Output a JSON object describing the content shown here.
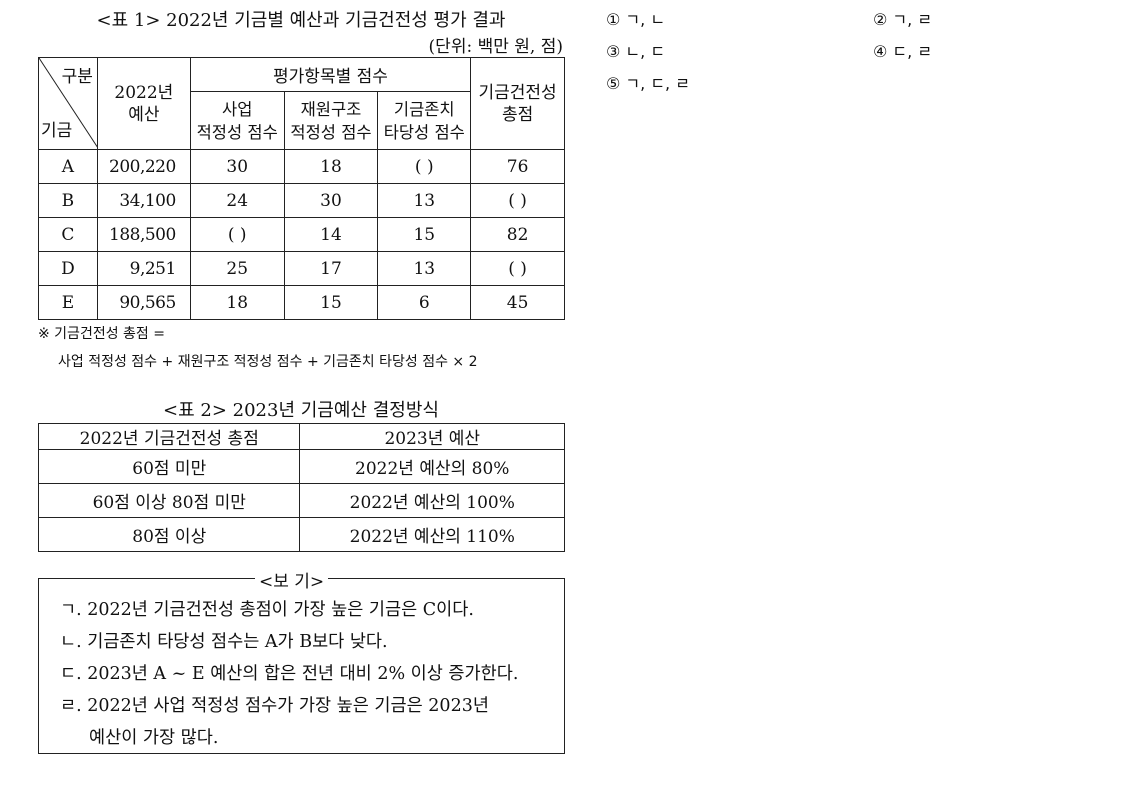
{
  "table1": {
    "title": "<표 1> 2022년 기금별 예산과 기금건전성 평가 결과",
    "unit": "(단위: 백만 원, 점)",
    "diag_top": "구분",
    "diag_bottom": "기금",
    "col_budget": "2022년\n예산",
    "col_group": "평가항목별 점수",
    "col_sub1": "사업\n적정성 점수",
    "col_sub2": "재원구조\n적정성 점수",
    "col_sub3": "기금존치\n타당성 점수",
    "col_total": "기금건전성\n총점",
    "rows": [
      {
        "fund": "A",
        "budget": "200,220",
        "s1": "30",
        "s2": "18",
        "s3": "(     )",
        "total": "76"
      },
      {
        "fund": "B",
        "budget": "34,100",
        "s1": "24",
        "s2": "30",
        "s3": "13",
        "total": "(     )"
      },
      {
        "fund": "C",
        "budget": "188,500",
        "s1": "(     )",
        "s2": "14",
        "s3": "15",
        "total": "82"
      },
      {
        "fund": "D",
        "budget": "9,251",
        "s1": "25",
        "s2": "17",
        "s3": "13",
        "total": "(     )"
      },
      {
        "fund": "E",
        "budget": "90,565",
        "s1": "18",
        "s2": "15",
        "s3": "6",
        "total": "45"
      }
    ],
    "note1": "※ 기금건전성 총점 =",
    "note2": "사업 적정성 점수 + 재원구조 적정성 점수 + 기금존치 타당성 점수 × 2"
  },
  "table2": {
    "title": "<표 2> 2023년 기금예산 결정방식",
    "head1": "2022년 기금건전성 총점",
    "head2": "2023년 예산",
    "rows": [
      {
        "score": "60점 미만",
        "budget": "2022년 예산의 80%"
      },
      {
        "score": "60점 이상 80점 미만",
        "budget": "2022년 예산의 100%"
      },
      {
        "score": "80점 이상",
        "budget": "2022년 예산의 110%"
      }
    ]
  },
  "bogi": {
    "title": "<보 기>",
    "items": [
      "ㄱ. 2022년 기금건전성 총점이 가장 높은 기금은 C이다.",
      "ㄴ. 기금존치 타당성 점수는 A가 B보다 낮다.",
      "ㄷ. 2023년 A ~ E 예산의 합은 전년 대비 2% 이상 증가한다.",
      "ㄹ. 2022년 사업 적정성 점수가 가장 높은 기금은 2023년",
      "예산이 가장 많다."
    ]
  },
  "options": [
    "① ㄱ, ㄴ",
    "② ㄱ, ㄹ",
    "③ ㄴ, ㄷ",
    "④ ㄷ, ㄹ",
    "⑤ ㄱ, ㄷ, ㄹ"
  ]
}
